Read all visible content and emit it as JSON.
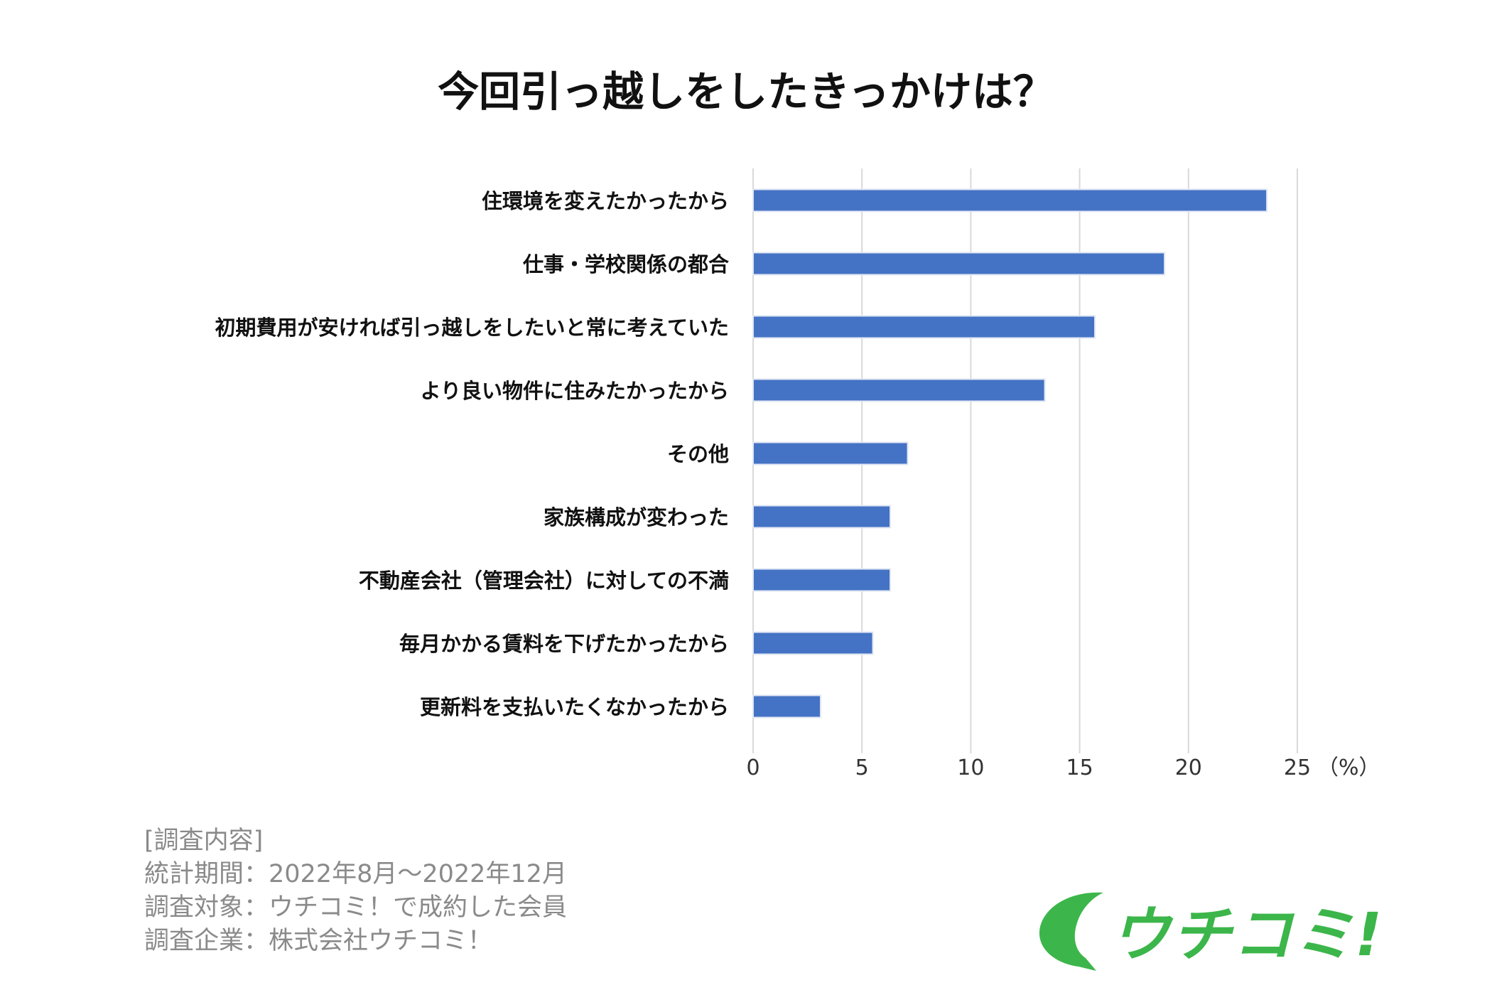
{
  "chart_data": {
    "type": "bar",
    "orientation": "horizontal",
    "title": "今回引っ越しをしたきっかけは？",
    "categories": [
      "住環境を変えたかったから",
      "仕事・学校関係の都合",
      "初期費用が安ければ引っ越しをしたいと常に考えていた",
      "より良い物件に住みたかったから",
      "その他",
      "家族構成が変わった",
      "不動産会社（管理会社）に対しての不満",
      "毎月かかる賃料を下げたかったから",
      "更新料を支払いたくなかったから"
    ],
    "values": [
      23.6,
      18.9,
      15.7,
      13.4,
      7.1,
      6.3,
      6.3,
      5.5,
      3.1
    ],
    "xlim": [
      0,
      25
    ],
    "xticks": [
      0,
      5,
      10,
      15,
      20,
      25
    ],
    "xunit": "（%）",
    "grid": true,
    "bar_color": "#4472c4"
  },
  "footer": {
    "lines": [
      "[調査内容]",
      "統計期間：2022年8月～2022年12月",
      "調査対象：ウチコミ！で成約した会員",
      "調査企業：株式会社ウチコミ！"
    ]
  },
  "logo": {
    "text": "ウチコミ!",
    "color": "#3cb64a"
  }
}
